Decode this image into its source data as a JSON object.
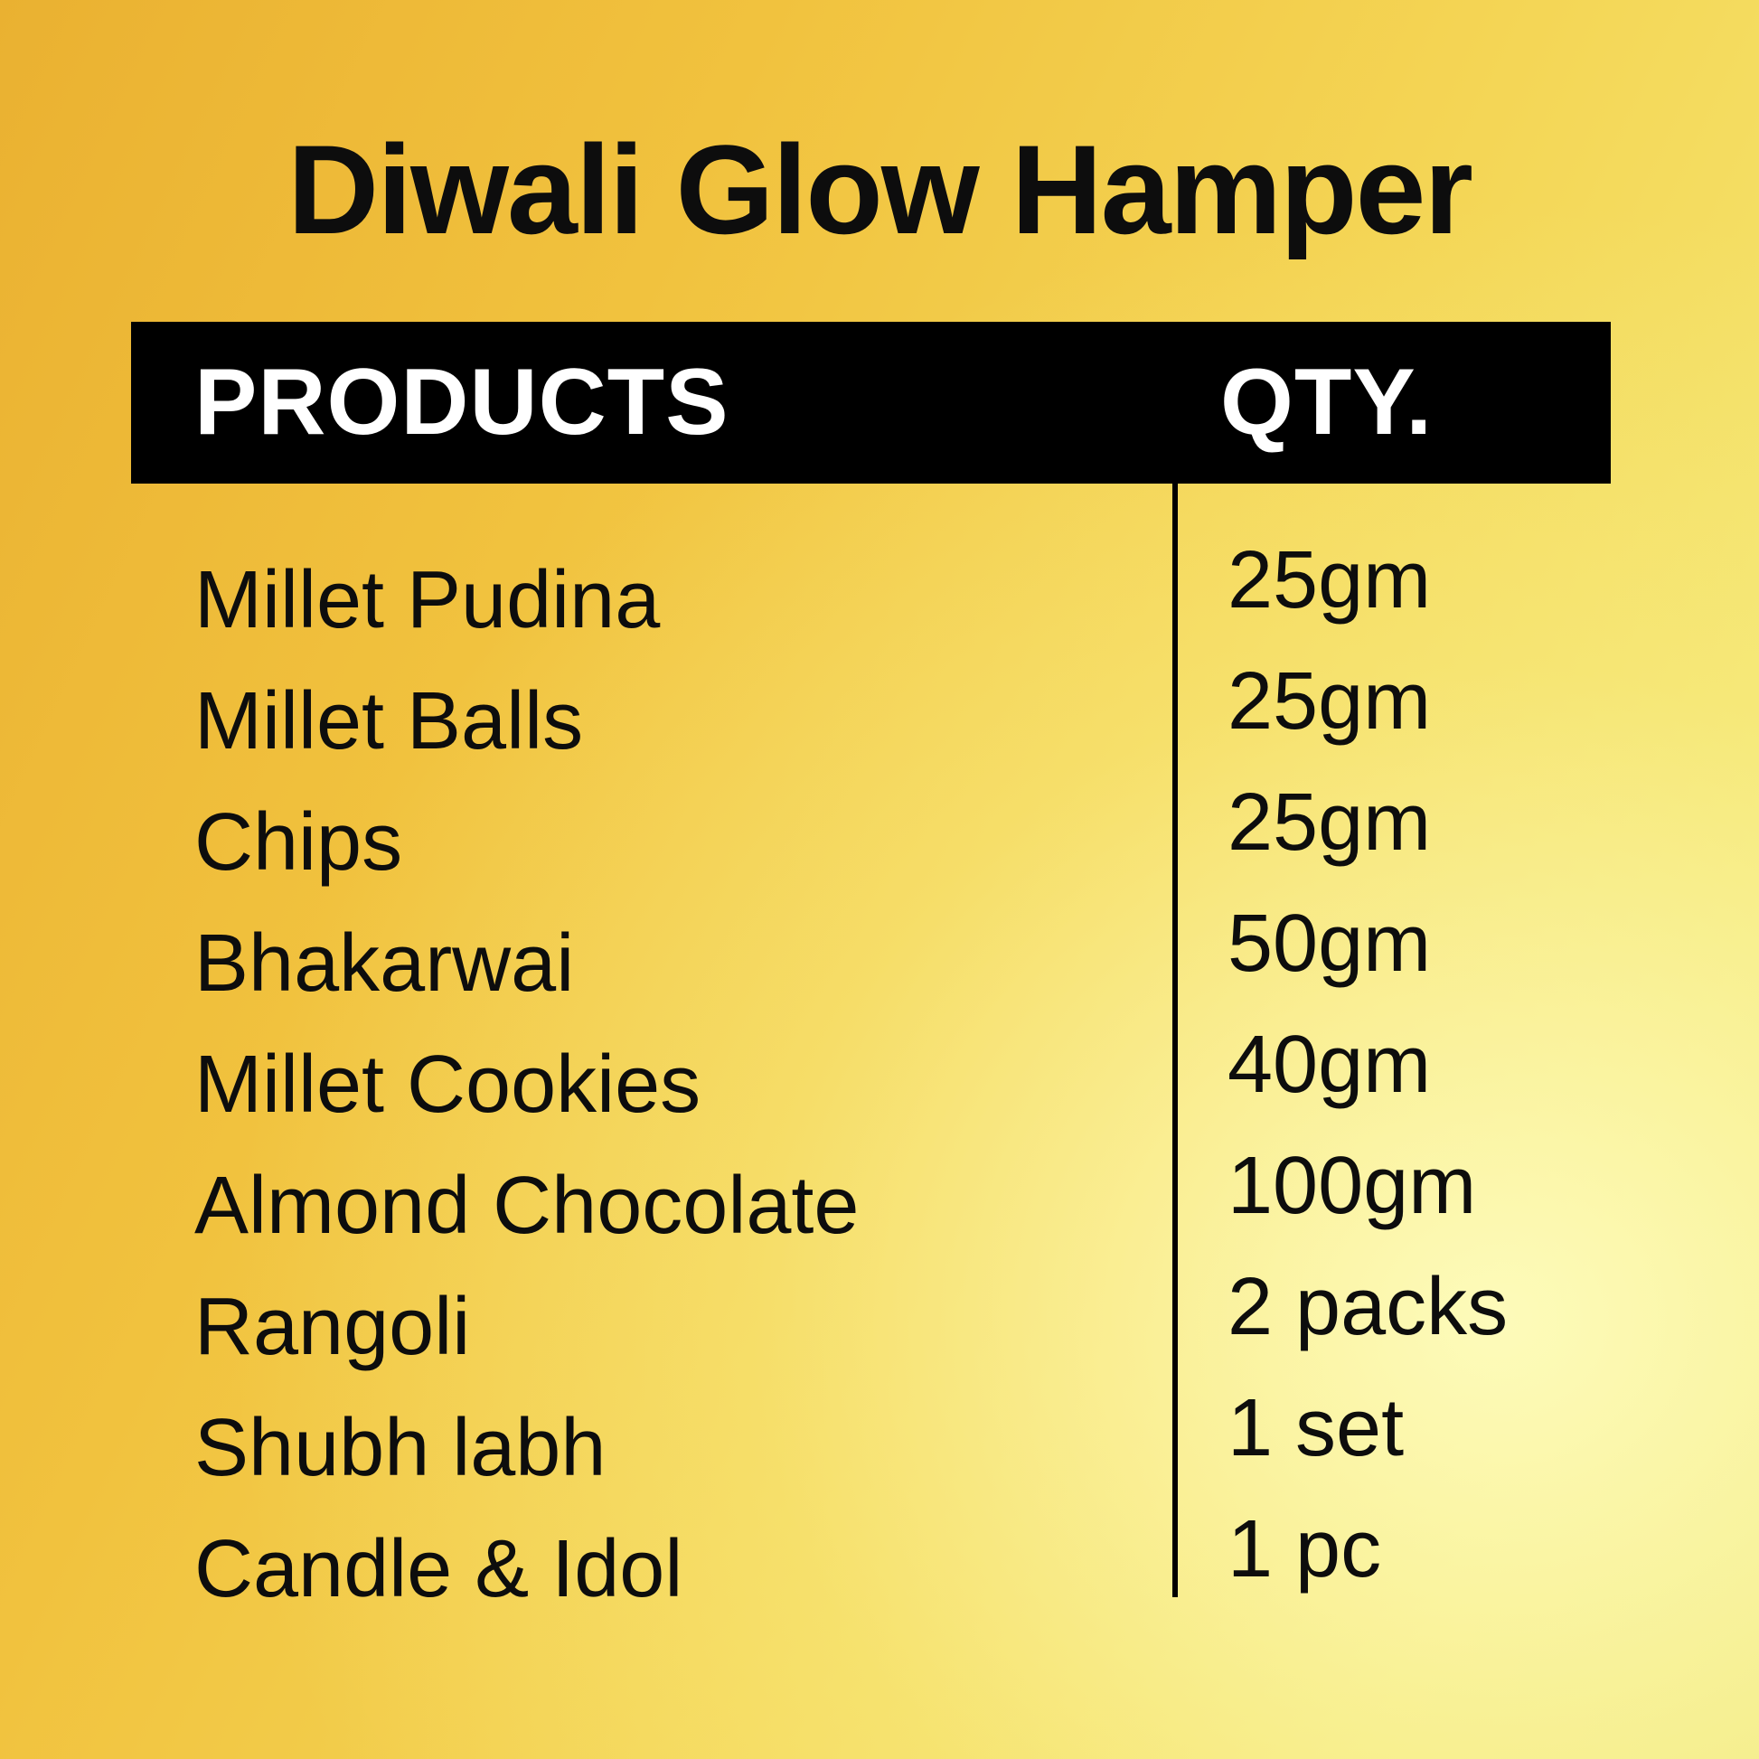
{
  "title": "Diwali Glow Hamper",
  "header": {
    "products": "PRODUCTS",
    "qty": "QTY."
  },
  "colors": {
    "header_bg": "#000000",
    "header_text": "#ffffff",
    "text": "#0d0d0d",
    "background_gold": "#eab131",
    "background_light": "#f3e670"
  },
  "items": [
    {
      "product": "Millet Pudina",
      "qty": "25gm"
    },
    {
      "product": "Millet Balls",
      "qty": "25gm"
    },
    {
      "product": "Chips",
      "qty": "25gm"
    },
    {
      "product": "Bhakarwai",
      "qty": "50gm"
    },
    {
      "product": "Millet Cookies",
      "qty": "40gm"
    },
    {
      "product": "Almond Chocolate",
      "qty": "100gm"
    },
    {
      "product": "Rangoli",
      "qty": "2 packs"
    },
    {
      "product": "Shubh labh",
      "qty": "1 set"
    },
    {
      "product": "Candle & Idol",
      "qty": "1 pc"
    }
  ]
}
